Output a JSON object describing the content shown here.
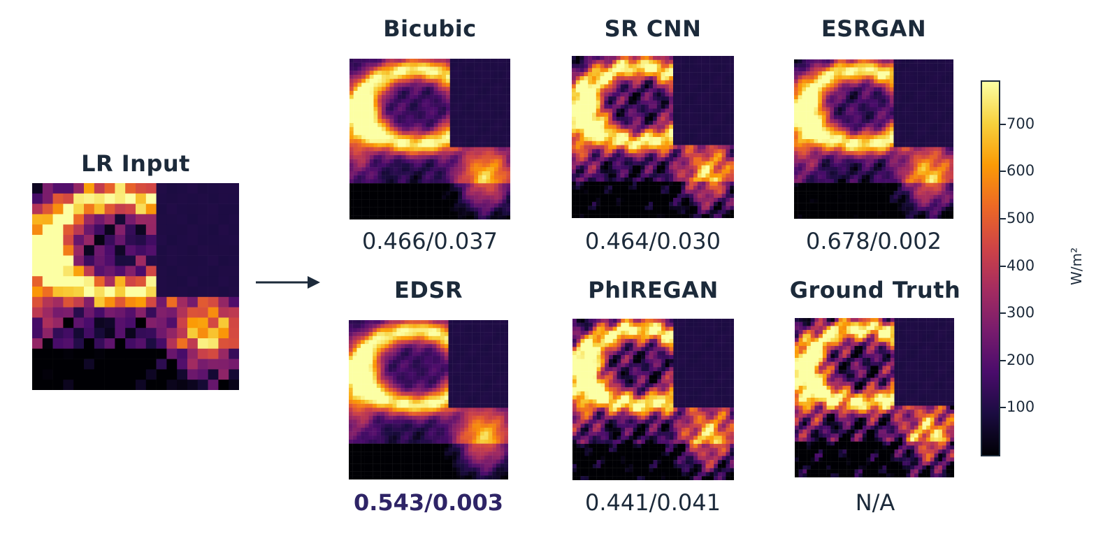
{
  "input": {
    "title": "LR Input"
  },
  "methods": [
    {
      "title": "Bicubic",
      "metric_a": "0.466",
      "metric_b": "0.037"
    },
    {
      "title": "SR CNN",
      "metric_a": "0.464",
      "metric_b": "0.030"
    },
    {
      "title": "ESRGAN",
      "metric_a": "0.678",
      "metric_b": "0.002"
    },
    {
      "title": "EDSR",
      "metric_a": "0.543",
      "metric_b": "0.003",
      "best": true
    },
    {
      "title": "PhIREGAN",
      "metric_a": "0.441",
      "metric_b": "0.041"
    },
    {
      "title": "Ground Truth",
      "metric_text": "N/A"
    }
  ],
  "colorbar": {
    "ticks": [
      "700",
      "600",
      "500",
      "400",
      "300",
      "200",
      "100"
    ],
    "unit": "W/m²",
    "colormap": [
      "#000004",
      "#1b0c41",
      "#4a0c6b",
      "#781c6d",
      "#a52c60",
      "#cf4446",
      "#ed6925",
      "#fb9b06",
      "#f7d13d",
      "#fcffa4"
    ]
  },
  "arrow": {
    "icon": "right-arrow-icon"
  }
}
